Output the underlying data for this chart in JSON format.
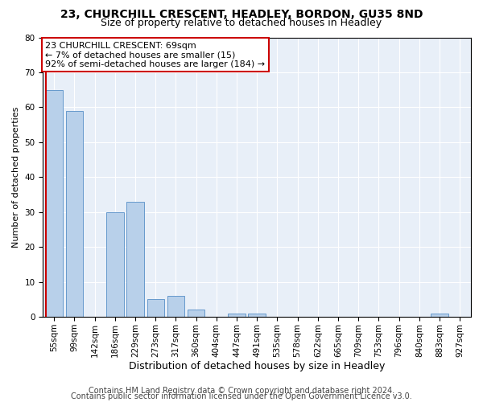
{
  "title": "23, CHURCHILL CRESCENT, HEADLEY, BORDON, GU35 8ND",
  "subtitle": "Size of property relative to detached houses in Headley",
  "xlabel": "Distribution of detached houses by size in Headley",
  "ylabel": "Number of detached properties",
  "bar_labels": [
    "55sqm",
    "99sqm",
    "142sqm",
    "186sqm",
    "229sqm",
    "273sqm",
    "317sqm",
    "360sqm",
    "404sqm",
    "447sqm",
    "491sqm",
    "535sqm",
    "578sqm",
    "622sqm",
    "665sqm",
    "709sqm",
    "753sqm",
    "796sqm",
    "840sqm",
    "883sqm",
    "927sqm"
  ],
  "bar_values": [
    65,
    59,
    0,
    30,
    33,
    5,
    6,
    2,
    0,
    1,
    1,
    0,
    0,
    0,
    0,
    0,
    0,
    0,
    0,
    1,
    0
  ],
  "bar_color": "#b8d0ea",
  "bar_edge_color": "#6699cc",
  "ylim": [
    0,
    80
  ],
  "yticks": [
    0,
    10,
    20,
    30,
    40,
    50,
    60,
    70,
    80
  ],
  "annotation_title": "23 CHURCHILL CRESCENT: 69sqm",
  "annotation_line1": "← 7% of detached houses are smaller (15)",
  "annotation_line2": "92% of semi-detached houses are larger (184) →",
  "vline_color": "#cc0000",
  "annotation_box_facecolor": "#ffffff",
  "annotation_box_edgecolor": "#cc0000",
  "footer1": "Contains HM Land Registry data © Crown copyright and database right 2024.",
  "footer2": "Contains public sector information licensed under the Open Government Licence v3.0.",
  "background_color": "#ffffff",
  "plot_bg_color": "#e8eff8",
  "grid_color": "#ffffff",
  "title_fontsize": 10,
  "subtitle_fontsize": 9,
  "xlabel_fontsize": 9,
  "ylabel_fontsize": 8,
  "tick_fontsize": 7.5,
  "annotation_fontsize": 8,
  "footer_fontsize": 7
}
